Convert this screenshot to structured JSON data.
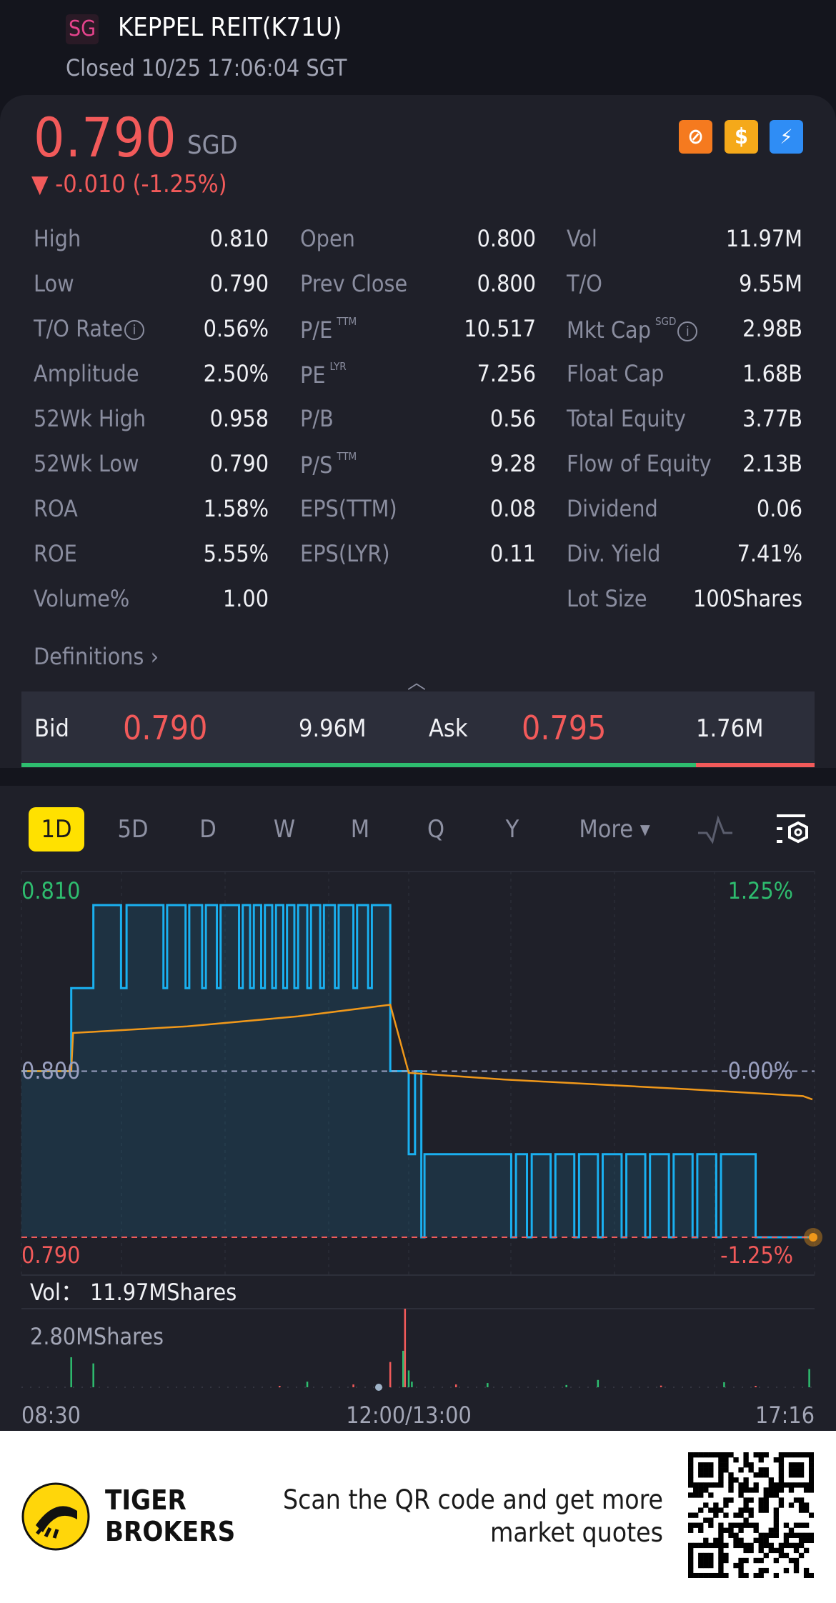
{
  "header": {
    "market_badge": "SG",
    "title": "KEPPEL REIT(K71U)",
    "status": "Closed 10/25 17:06:04 SGT"
  },
  "quote": {
    "price": "0.790",
    "currency": "SGD",
    "change": "▼ -0.010 (-1.25%)",
    "icons": [
      "no-short-icon",
      "dividend-icon",
      "fast-trade-icon"
    ]
  },
  "stats": [
    [
      {
        "label": "High",
        "value": "0.810"
      },
      {
        "label": "Open",
        "value": "0.800"
      },
      {
        "label": "Vol",
        "value": "11.97M"
      }
    ],
    [
      {
        "label": "Low",
        "value": "0.790"
      },
      {
        "label": "Prev Close",
        "value": "0.800"
      },
      {
        "label": "T/O",
        "value": "9.55M"
      }
    ],
    [
      {
        "label": "T/O Rate",
        "value": "0.56%"
      },
      {
        "label": "P/E",
        "sup": "TTM",
        "value": "10.517"
      },
      {
        "label": "Mkt Cap",
        "sup": "SGD",
        "value": "2.98B"
      }
    ],
    [
      {
        "label": "Amplitude",
        "value": "2.50%"
      },
      {
        "label": "PE",
        "sup": "LYR",
        "value": "7.256"
      },
      {
        "label": "Float Cap",
        "value": "1.68B"
      }
    ],
    [
      {
        "label": "52Wk High",
        "value": "0.958"
      },
      {
        "label": "P/B",
        "value": "0.56"
      },
      {
        "label": "Total Equity",
        "value": "3.77B"
      }
    ],
    [
      {
        "label": "52Wk Low",
        "value": "0.790"
      },
      {
        "label": "P/S",
        "sup": "TTM",
        "value": "9.28"
      },
      {
        "label": "Flow of Equity",
        "value": "2.13B"
      }
    ],
    [
      {
        "label": "ROA",
        "value": "1.58%"
      },
      {
        "label": "EPS(TTM)",
        "value": "0.08"
      },
      {
        "label": "Dividend",
        "value": "0.06"
      }
    ],
    [
      {
        "label": "ROE",
        "value": "5.55%"
      },
      {
        "label": "EPS(LYR)",
        "value": "0.11"
      },
      {
        "label": "Div. Yield",
        "value": "7.41%"
      }
    ],
    [
      {
        "label": "Volume%",
        "value": "1.00"
      },
      {
        "label": "",
        "value": ""
      },
      {
        "label": "Lot Size",
        "value": "100Shares"
      }
    ]
  ],
  "definitions": "Definitions",
  "bidask": {
    "bid_label": "Bid",
    "bid_price": "0.790",
    "bid_size": "9.96M",
    "ask_label": "Ask",
    "ask_price": "0.795",
    "ask_size": "1.76M",
    "bid_share": 0.85
  },
  "tabs": [
    "1D",
    "5D",
    "D",
    "W",
    "M",
    "Q",
    "Y",
    "More"
  ],
  "active_tab": "1D",
  "colors": {
    "up": "#2ebd6f",
    "down": "#f25a5a",
    "price_line": "#1ab0f0",
    "avg_line": "#f0981a",
    "accent": "#ffe100"
  },
  "chart_data": {
    "type": "line",
    "y_left_ticks": [
      "0.810",
      "0.800",
      "0.790"
    ],
    "y_right_ticks": [
      "1.25%",
      "0.00%",
      "-1.25%"
    ],
    "x_ticks": [
      "08:30",
      "12:00/13:00",
      "17:16"
    ],
    "ylim": [
      0.79,
      0.81
    ],
    "prev_close": 0.8,
    "price_series": [
      [
        "08:30",
        0.8
      ],
      [
        "08:57",
        0.805
      ],
      [
        "09:09",
        0.81
      ],
      [
        "09:24",
        0.805
      ],
      [
        "09:27",
        0.81
      ],
      [
        "09:47",
        0.805
      ],
      [
        "09:49",
        0.81
      ],
      [
        "09:59",
        0.805
      ],
      [
        "10:01",
        0.81
      ],
      [
        "10:08",
        0.805
      ],
      [
        "10:10",
        0.81
      ],
      [
        "10:16",
        0.805
      ],
      [
        "10:18",
        0.81
      ],
      [
        "10:28",
        0.805
      ],
      [
        "10:30",
        0.81
      ],
      [
        "10:34",
        0.805
      ],
      [
        "10:36",
        0.81
      ],
      [
        "10:40",
        0.805
      ],
      [
        "10:42",
        0.81
      ],
      [
        "10:46",
        0.805
      ],
      [
        "10:48",
        0.81
      ],
      [
        "10:52",
        0.805
      ],
      [
        "10:54",
        0.81
      ],
      [
        "10:58",
        0.805
      ],
      [
        "11:00",
        0.81
      ],
      [
        "11:05",
        0.805
      ],
      [
        "11:07",
        0.81
      ],
      [
        "11:12",
        0.805
      ],
      [
        "11:14",
        0.81
      ],
      [
        "11:20",
        0.805
      ],
      [
        "11:22",
        0.81
      ],
      [
        "11:30",
        0.805
      ],
      [
        "11:32",
        0.81
      ],
      [
        "11:38",
        0.805
      ],
      [
        "11:40",
        0.81
      ],
      [
        "11:50",
        0.8
      ],
      [
        "12:00",
        0.8
      ],
      [
        "13:00",
        0.795
      ],
      [
        "13:04",
        0.8
      ],
      [
        "13:08",
        0.79
      ],
      [
        "13:10",
        0.795
      ],
      [
        "14:05",
        0.79
      ],
      [
        "14:08",
        0.795
      ],
      [
        "14:15",
        0.79
      ],
      [
        "14:18",
        0.795
      ],
      [
        "14:30",
        0.79
      ],
      [
        "14:33",
        0.795
      ],
      [
        "14:45",
        0.79
      ],
      [
        "14:48",
        0.795
      ],
      [
        "15:00",
        0.79
      ],
      [
        "15:03",
        0.795
      ],
      [
        "15:15",
        0.79
      ],
      [
        "15:18",
        0.795
      ],
      [
        "15:30",
        0.79
      ],
      [
        "15:33",
        0.795
      ],
      [
        "15:45",
        0.79
      ],
      [
        "15:48",
        0.795
      ],
      [
        "16:00",
        0.79
      ],
      [
        "16:03",
        0.795
      ],
      [
        "16:15",
        0.79
      ],
      [
        "16:18",
        0.795
      ],
      [
        "16:40",
        0.79
      ],
      [
        "17:16",
        0.79
      ]
    ],
    "avg_series": [
      [
        "08:30",
        0.8
      ],
      [
        "08:57",
        0.8
      ],
      [
        "08:58",
        0.8023
      ],
      [
        "10:00",
        0.8027
      ],
      [
        "11:00",
        0.8033
      ],
      [
        "11:50",
        0.804
      ],
      [
        "12:00",
        0.7999
      ],
      [
        "14:00",
        0.7995
      ],
      [
        "16:00",
        0.7989
      ],
      [
        "17:10",
        0.7985
      ],
      [
        "17:16",
        0.7983
      ]
    ],
    "volume_label": "Vol：",
    "volume_total": "11.97MShares",
    "volume_max_label": "2.80MShares",
    "volume_max": 2.8,
    "volume_bars": [
      [
        "08:57",
        1.07,
        "up"
      ],
      [
        "09:09",
        0.85,
        "up"
      ],
      [
        "10:50",
        0.05,
        "down"
      ],
      [
        "11:05",
        0.2,
        "up"
      ],
      [
        "11:30",
        0.1,
        "down"
      ],
      [
        "11:50",
        0.9,
        "down"
      ],
      [
        "11:57",
        1.3,
        "up"
      ],
      [
        "11:58",
        2.8,
        "down"
      ],
      [
        "12:00",
        0.6,
        "up"
      ],
      [
        "13:02",
        0.2,
        "up"
      ],
      [
        "13:30",
        0.1,
        "down"
      ],
      [
        "13:50",
        0.15,
        "up"
      ],
      [
        "14:40",
        0.08,
        "up"
      ],
      [
        "15:00",
        0.26,
        "up"
      ],
      [
        "15:40",
        0.06,
        "down"
      ],
      [
        "16:20",
        0.18,
        "up"
      ],
      [
        "16:40",
        0.05,
        "down"
      ],
      [
        "17:14",
        0.65,
        "up"
      ]
    ]
  },
  "footer": {
    "brand_line1": "TIGER",
    "brand_line2": "BROKERS",
    "tagline_line1": "Scan the QR code and get more",
    "tagline_line2": "market quotes"
  }
}
